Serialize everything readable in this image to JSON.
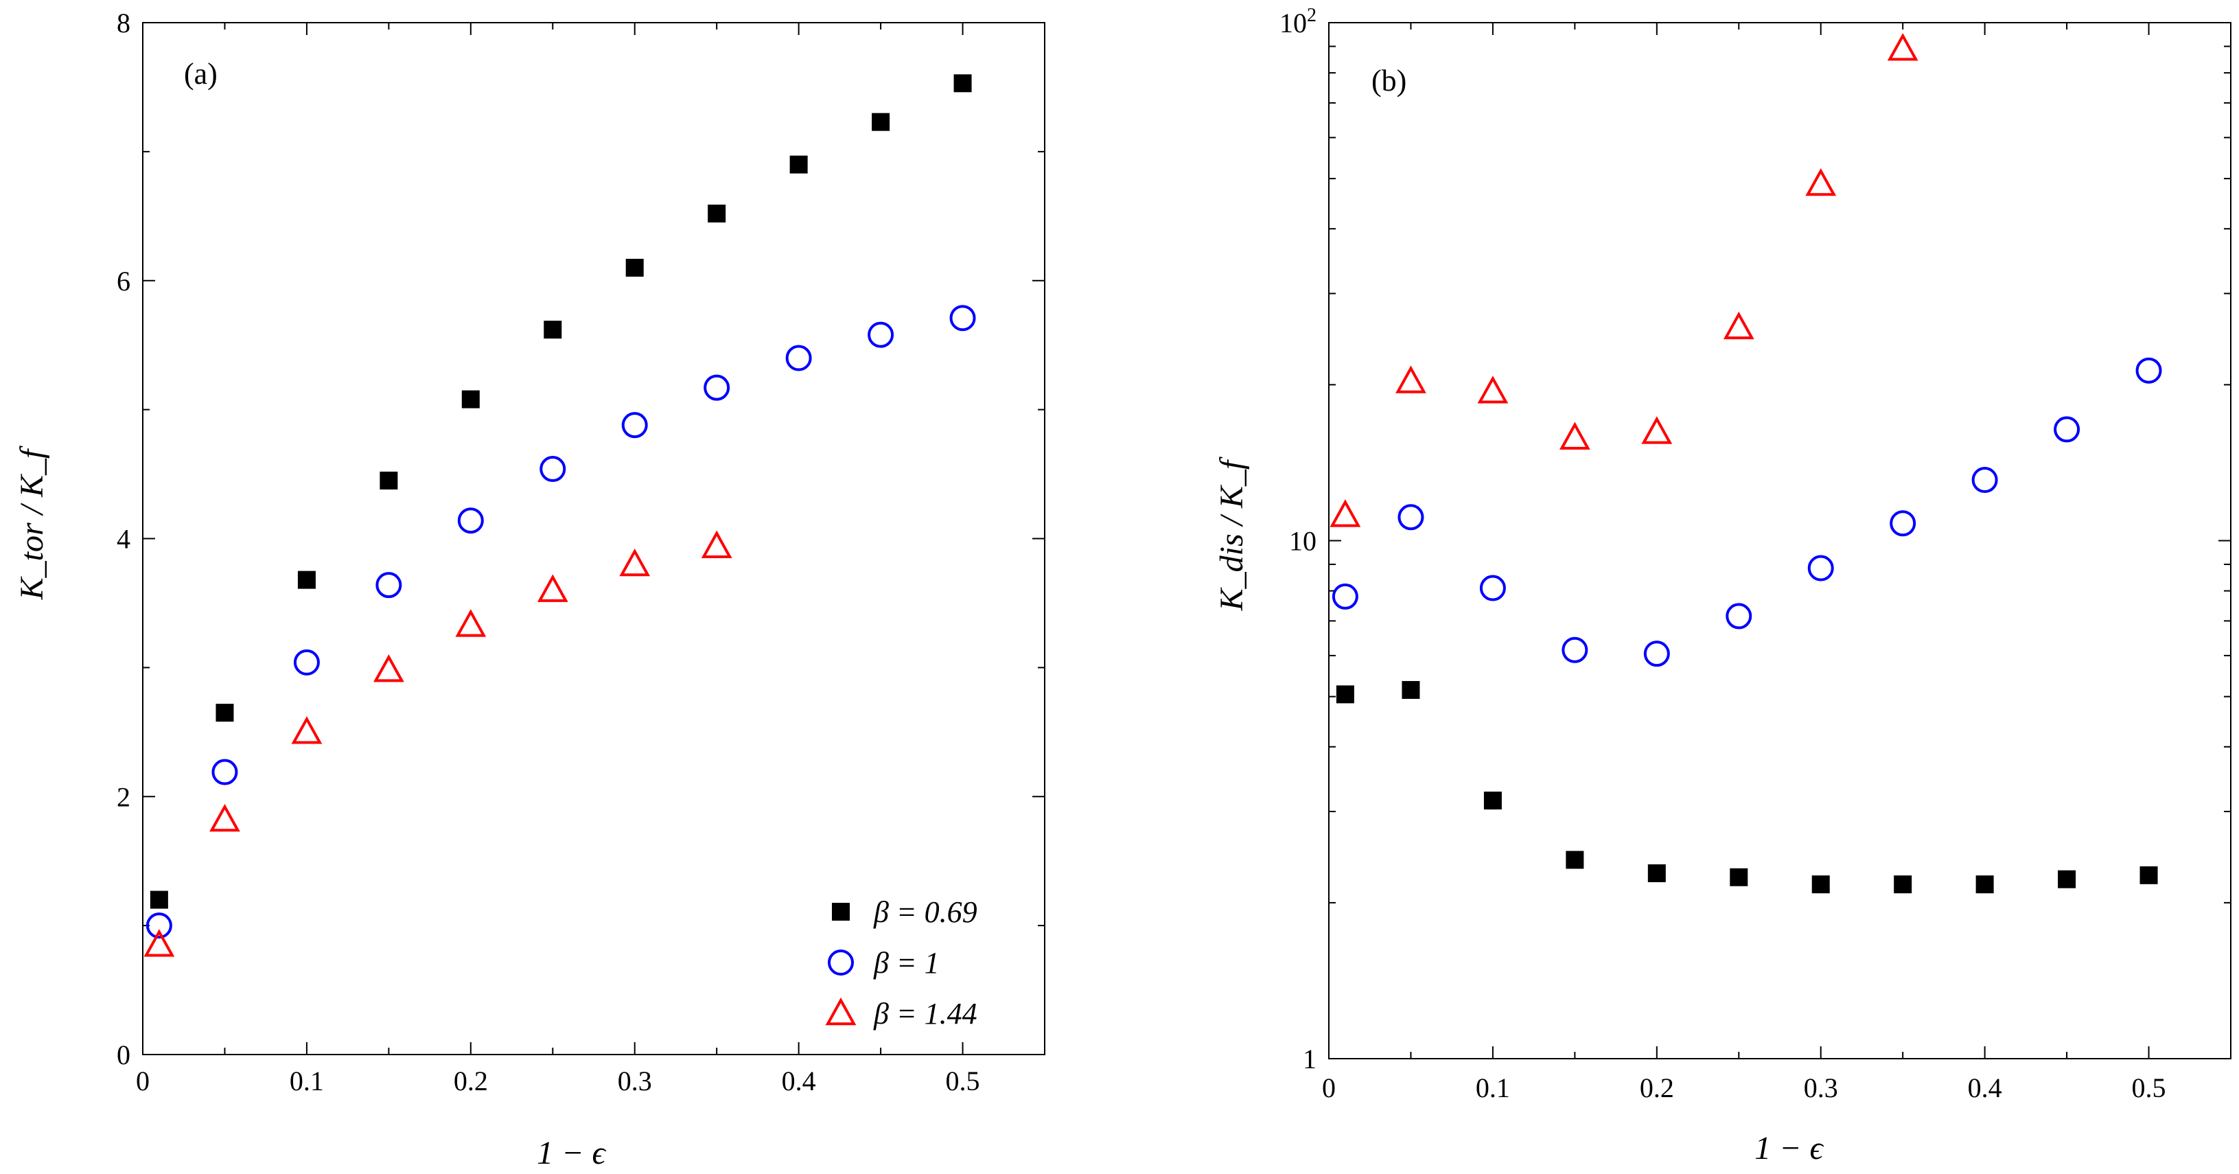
{
  "chart_data": [
    {
      "panel_label": "(a)",
      "type": "scatter",
      "yscale": "linear",
      "xlabel": "1 − ϵ",
      "ylabel": "K_tor / K_f",
      "xlim": [
        0,
        0.55
      ],
      "ylim": [
        0,
        8
      ],
      "xticks": [
        0,
        0.1,
        0.2,
        0.3,
        0.4,
        0.5
      ],
      "xtick_labels": [
        "0",
        "0.1",
        "0.2",
        "0.3",
        "0.4",
        "0.5"
      ],
      "yticks": [
        0,
        2,
        4,
        6,
        8
      ],
      "ytick_labels": [
        "0",
        "2",
        "4",
        "6",
        "8"
      ],
      "legend_position": "bottom-right",
      "series": [
        {
          "name": "β = 0.69",
          "marker": "square",
          "color": "#000000",
          "x": [
            0.01,
            0.05,
            0.1,
            0.15,
            0.2,
            0.25,
            0.3,
            0.35,
            0.4,
            0.45,
            0.5
          ],
          "y": [
            1.2,
            2.65,
            3.68,
            4.45,
            5.08,
            5.62,
            6.1,
            6.52,
            6.9,
            7.23,
            7.53
          ]
        },
        {
          "name": "β = 1",
          "marker": "circle",
          "color": "#0000ff",
          "x": [
            0.01,
            0.05,
            0.1,
            0.15,
            0.2,
            0.25,
            0.3,
            0.35,
            0.4,
            0.45,
            0.5
          ],
          "y": [
            1.0,
            2.19,
            3.04,
            3.64,
            4.14,
            4.54,
            4.88,
            5.17,
            5.4,
            5.58,
            5.71
          ]
        },
        {
          "name": "β = 1.44",
          "marker": "triangle",
          "color": "#ff0000",
          "x": [
            0.01,
            0.05,
            0.1,
            0.15,
            0.2,
            0.25,
            0.3,
            0.35
          ],
          "y": [
            0.85,
            1.82,
            2.5,
            2.98,
            3.33,
            3.6,
            3.8,
            3.94
          ]
        }
      ]
    },
    {
      "panel_label": "(b)",
      "type": "scatter",
      "yscale": "log",
      "xlabel": "1 − ϵ",
      "ylabel": "K_dis / K_f",
      "xlim": [
        0,
        0.55
      ],
      "ylim": [
        1,
        100
      ],
      "xticks": [
        0,
        0.1,
        0.2,
        0.3,
        0.4,
        0.5
      ],
      "xtick_labels": [
        "0",
        "0.1",
        "0.2",
        "0.3",
        "0.4",
        "0.5"
      ],
      "yticks": [
        1,
        10,
        100
      ],
      "ytick_labels": [
        "1",
        "10",
        "10²"
      ],
      "series": [
        {
          "name": "β = 0.69",
          "marker": "square",
          "color": "#000000",
          "x": [
            0.01,
            0.05,
            0.1,
            0.15,
            0.2,
            0.25,
            0.3,
            0.35,
            0.4,
            0.45,
            0.5
          ],
          "y": [
            5.05,
            5.15,
            3.15,
            2.42,
            2.28,
            2.24,
            2.17,
            2.17,
            2.17,
            2.22,
            2.26
          ]
        },
        {
          "name": "β = 1",
          "marker": "circle",
          "color": "#0000ff",
          "x": [
            0.01,
            0.05,
            0.1,
            0.15,
            0.2,
            0.25,
            0.3,
            0.35,
            0.4,
            0.45,
            0.5
          ],
          "y": [
            7.8,
            11.1,
            8.1,
            6.15,
            6.05,
            7.15,
            8.85,
            10.8,
            13.1,
            16.4,
            21.3
          ]
        },
        {
          "name": "β = 1.44",
          "marker": "triangle",
          "color": "#ff0000",
          "x": [
            0.01,
            0.05,
            0.1,
            0.15,
            0.2,
            0.25,
            0.3,
            0.35
          ],
          "y": [
            11.2,
            20.3,
            19.4,
            15.8,
            16.2,
            25.8,
            48.8,
            89.0
          ]
        }
      ]
    }
  ]
}
